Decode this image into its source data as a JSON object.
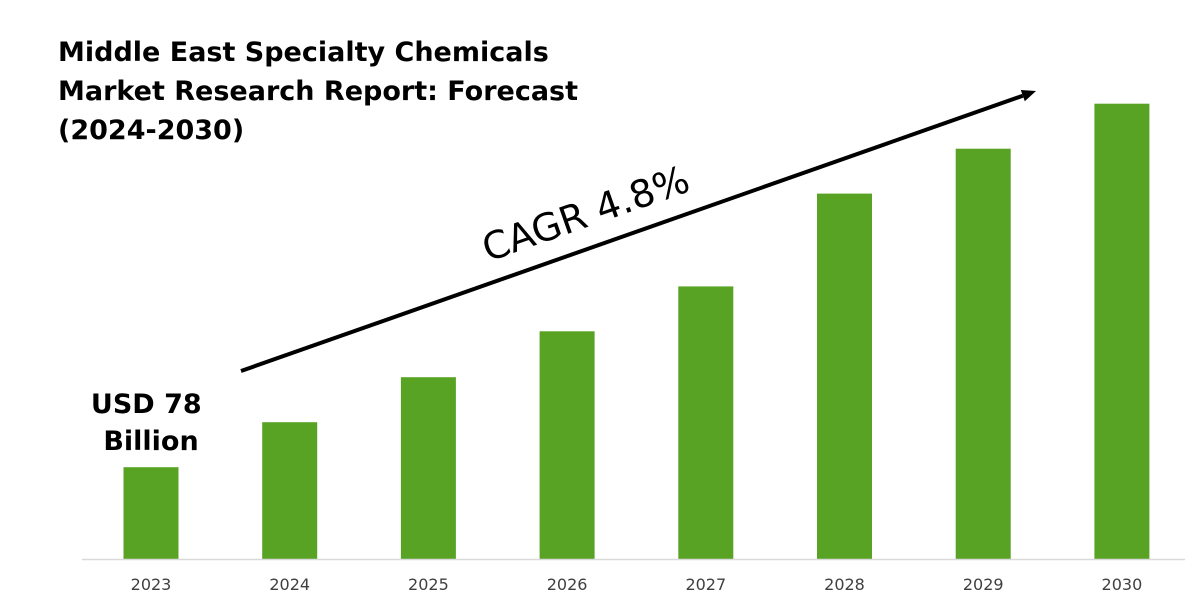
{
  "chart_data": {
    "type": "bar",
    "title_lines": [
      "Middle East Specialty Chemicals",
      "Market Research Report: Forecast",
      "(2024-2030)"
    ],
    "categories": [
      "2023",
      "2024",
      "2025",
      "2026",
      "2027",
      "2028",
      "2029",
      "2030"
    ],
    "values": [
      1.0,
      1.49,
      1.98,
      2.48,
      2.97,
      3.98,
      4.47,
      4.96
    ],
    "annotations": {
      "start_value_lines": [
        "USD 78",
        "Billion"
      ],
      "cagr_label": "CAGR 4.8%"
    },
    "ylim": [
      0,
      5.0
    ],
    "grid": false,
    "bar_color": "#58A324",
    "text_color": "#000000",
    "axis_color": "#D9D9D9",
    "tick_label_color": "#404040"
  }
}
